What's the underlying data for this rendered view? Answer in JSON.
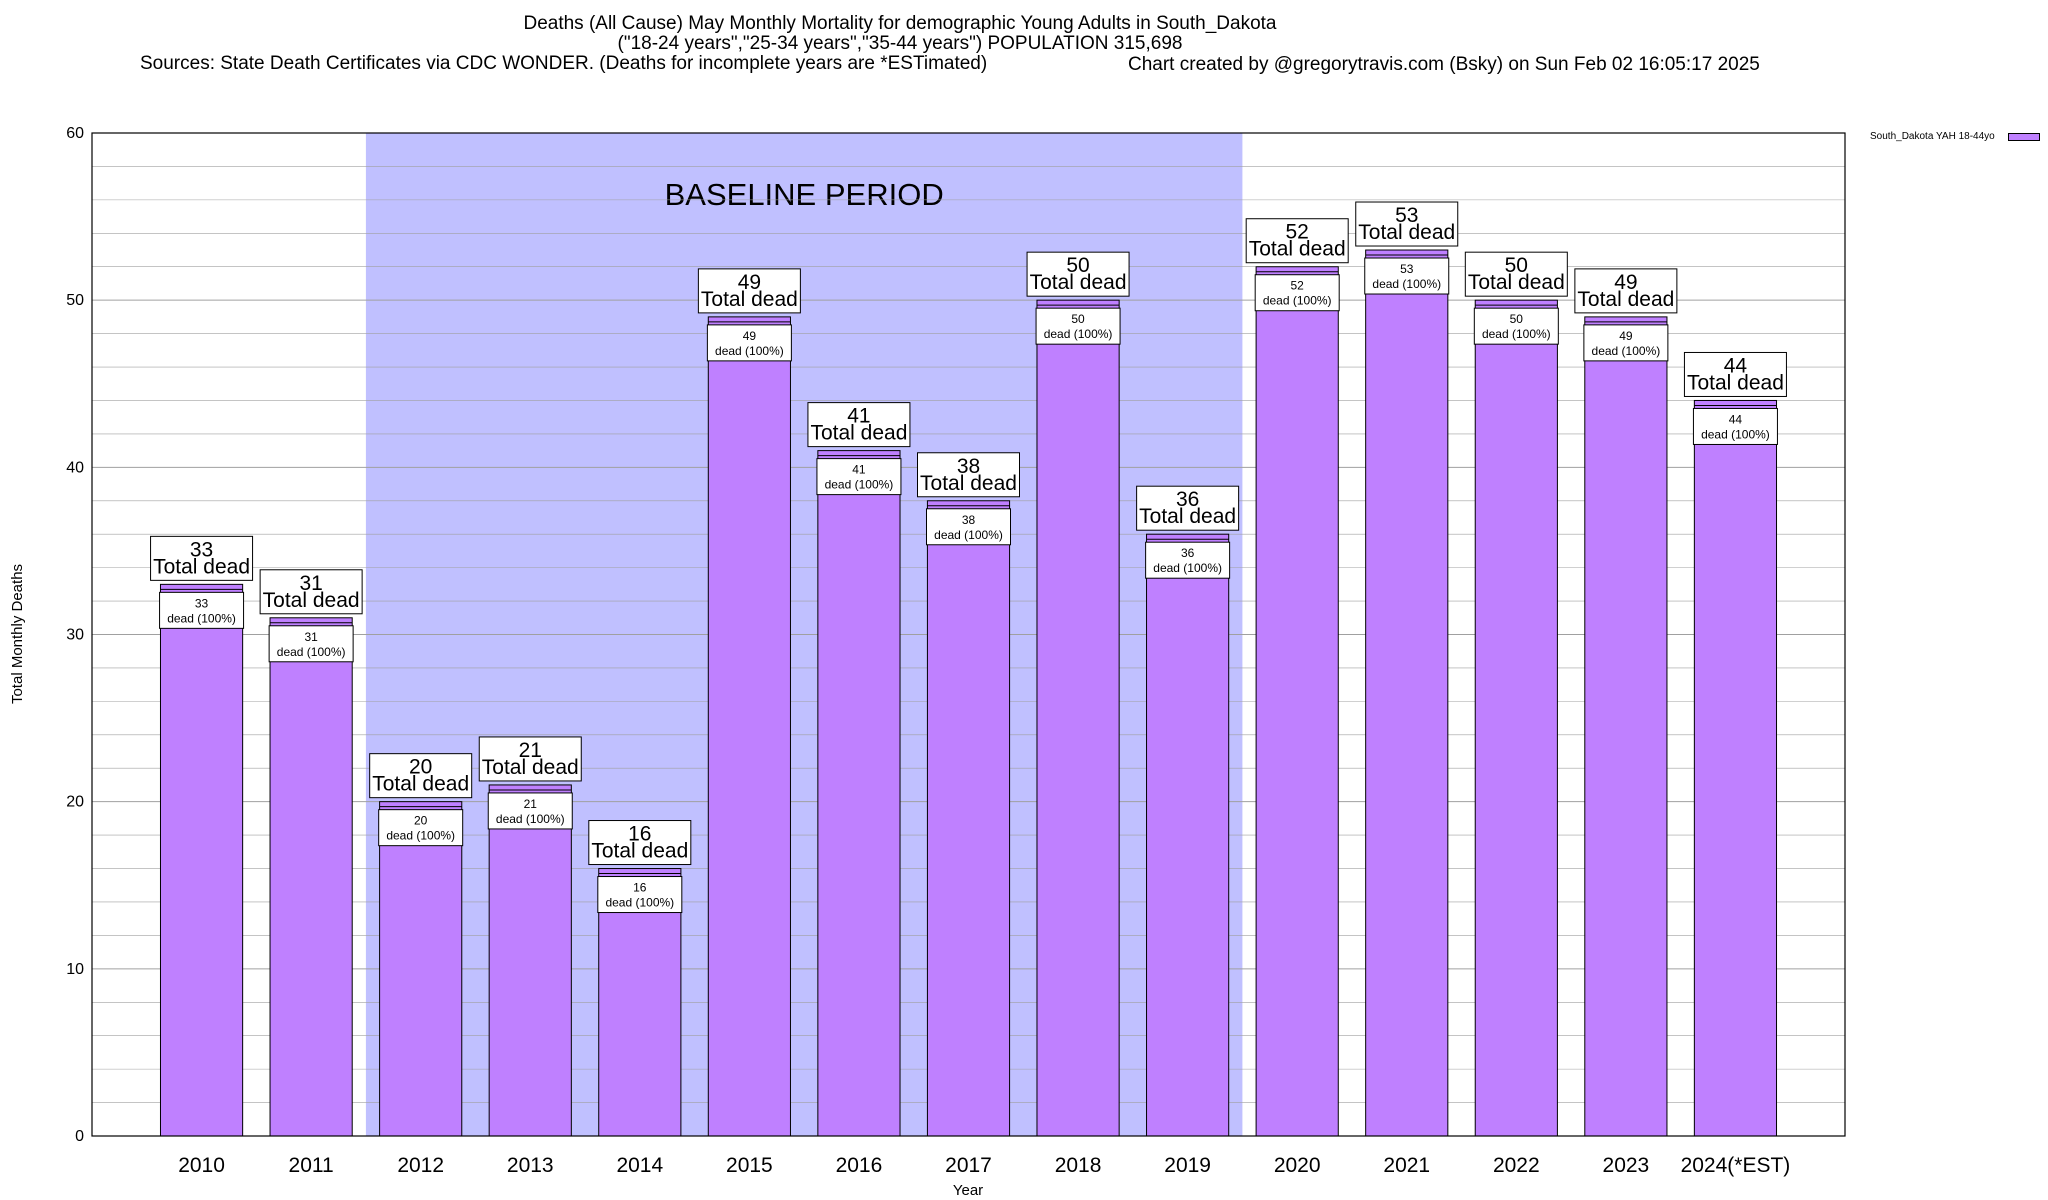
{
  "chart_data": {
    "type": "bar",
    "title": "Deaths (All Cause) May Monthly Mortality for demographic Young Adults in South_Dakota",
    "subtitle": "(\"18-24 years\",\"25-34 years\",\"35-44 years\") POPULATION 315,698",
    "source": "Sources: State Death Certificates via CDC WONDER. (Deaths for incomplete years are *ESTimated)",
    "credit": "Chart created by @gregorytravis.com (Bsky) on Sun Feb 02 16:05:17 2025",
    "xlabel": "Year",
    "ylabel": "Total Monthly Deaths",
    "ylim": [
      0,
      60
    ],
    "yticks": [
      0,
      10,
      20,
      30,
      40,
      50,
      60
    ],
    "grid": true,
    "legend_position": "top-right",
    "categories": [
      "2010",
      "2011",
      "2012",
      "2013",
      "2014",
      "2015",
      "2016",
      "2017",
      "2018",
      "2019",
      "2020",
      "2021",
      "2022",
      "2023",
      "2024(*EST)"
    ],
    "series": [
      {
        "name": "South_Dakota YAH 18-44yo",
        "values": [
          33,
          31,
          20,
          21,
          16,
          49,
          41,
          38,
          50,
          36,
          52,
          53,
          50,
          49,
          44
        ]
      }
    ],
    "label_outer_suffix": "Total dead",
    "label_inner_suffix": "dead (100%)",
    "baseline": {
      "label": "BASELINE PERIOD",
      "start": "2012",
      "end": "2019"
    },
    "colors": {
      "bar": "#bf80ff",
      "baseline": "#c0c0ff",
      "grid": "#a0a0a0"
    }
  }
}
